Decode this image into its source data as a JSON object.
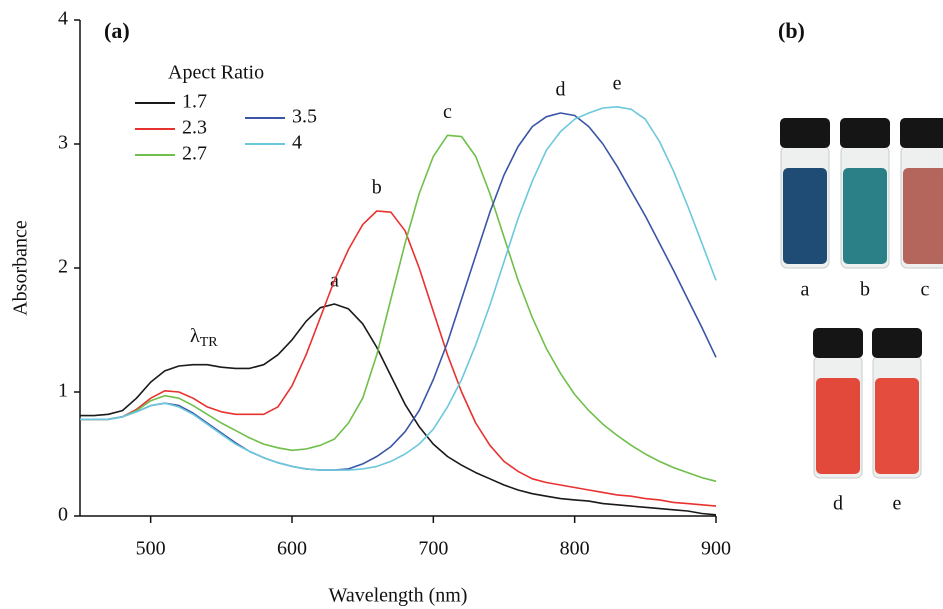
{
  "chart_data": {
    "type": "line",
    "panel_label": "(a)",
    "xlabel": "Wavelength (nm)",
    "ylabel": "Absorbance",
    "annotation": {
      "symbol": "λ",
      "subscript": "TR"
    },
    "legend_title": "Apect Ratio",
    "x": [
      450,
      460,
      470,
      480,
      490,
      500,
      510,
      520,
      530,
      540,
      550,
      560,
      570,
      580,
      590,
      600,
      610,
      620,
      630,
      640,
      650,
      660,
      670,
      680,
      690,
      700,
      710,
      720,
      730,
      740,
      750,
      760,
      770,
      780,
      790,
      800,
      810,
      820,
      830,
      840,
      850,
      860,
      870,
      880,
      890,
      900
    ],
    "series": [
      {
        "name": "1.7",
        "label": "a",
        "color": "#1a1a1a",
        "values": [
          0.81,
          0.81,
          0.82,
          0.85,
          0.95,
          1.08,
          1.17,
          1.21,
          1.22,
          1.22,
          1.2,
          1.19,
          1.19,
          1.22,
          1.3,
          1.42,
          1.57,
          1.68,
          1.71,
          1.67,
          1.55,
          1.36,
          1.13,
          0.9,
          0.72,
          0.58,
          0.48,
          0.41,
          0.35,
          0.3,
          0.25,
          0.21,
          0.18,
          0.16,
          0.14,
          0.13,
          0.12,
          0.1,
          0.09,
          0.08,
          0.07,
          0.06,
          0.05,
          0.04,
          0.02,
          0.01
        ]
      },
      {
        "name": "2.3",
        "label": "b",
        "color": "#e8322f",
        "values": [
          0.78,
          0.78,
          0.78,
          0.8,
          0.86,
          0.95,
          1.01,
          1.0,
          0.95,
          0.88,
          0.84,
          0.82,
          0.82,
          0.82,
          0.88,
          1.05,
          1.3,
          1.6,
          1.9,
          2.15,
          2.35,
          2.46,
          2.45,
          2.3,
          2.0,
          1.65,
          1.3,
          1.0,
          0.75,
          0.57,
          0.44,
          0.36,
          0.3,
          0.27,
          0.25,
          0.23,
          0.21,
          0.19,
          0.17,
          0.16,
          0.14,
          0.13,
          0.11,
          0.1,
          0.09,
          0.08
        ]
      },
      {
        "name": "2.7",
        "label": "c",
        "color": "#6fbf4a",
        "values": [
          0.78,
          0.78,
          0.78,
          0.8,
          0.85,
          0.93,
          0.97,
          0.95,
          0.89,
          0.82,
          0.75,
          0.69,
          0.63,
          0.58,
          0.55,
          0.53,
          0.54,
          0.57,
          0.62,
          0.75,
          0.95,
          1.3,
          1.75,
          2.2,
          2.6,
          2.9,
          3.07,
          3.06,
          2.9,
          2.6,
          2.25,
          1.9,
          1.6,
          1.35,
          1.15,
          0.98,
          0.85,
          0.74,
          0.65,
          0.57,
          0.5,
          0.44,
          0.39,
          0.35,
          0.31,
          0.28
        ]
      },
      {
        "name": "3.5",
        "label": "d",
        "color": "#3a55a8",
        "values": [
          0.78,
          0.78,
          0.78,
          0.8,
          0.84,
          0.89,
          0.91,
          0.89,
          0.83,
          0.75,
          0.67,
          0.59,
          0.52,
          0.47,
          0.43,
          0.4,
          0.38,
          0.37,
          0.37,
          0.38,
          0.42,
          0.48,
          0.56,
          0.68,
          0.85,
          1.1,
          1.4,
          1.75,
          2.1,
          2.45,
          2.75,
          2.98,
          3.14,
          3.22,
          3.25,
          3.23,
          3.14,
          3.0,
          2.82,
          2.62,
          2.42,
          2.2,
          1.98,
          1.75,
          1.52,
          1.28
        ]
      },
      {
        "name": "4",
        "label": "e",
        "color": "#6cc8dc",
        "values": [
          0.78,
          0.78,
          0.78,
          0.8,
          0.84,
          0.89,
          0.91,
          0.88,
          0.82,
          0.74,
          0.66,
          0.58,
          0.52,
          0.47,
          0.43,
          0.4,
          0.38,
          0.37,
          0.37,
          0.37,
          0.38,
          0.4,
          0.44,
          0.5,
          0.58,
          0.7,
          0.88,
          1.1,
          1.38,
          1.7,
          2.05,
          2.4,
          2.7,
          2.95,
          3.1,
          3.2,
          3.25,
          3.29,
          3.3,
          3.28,
          3.2,
          3.02,
          2.78,
          2.5,
          2.2,
          1.9
        ]
      }
    ],
    "xlim": [
      450,
      900
    ],
    "xticks": [
      500,
      600,
      700,
      800,
      900
    ],
    "ylim": [
      0,
      4
    ],
    "yticks": [
      0,
      1,
      2,
      3,
      4
    ]
  },
  "photo": {
    "panel_label": "(b)",
    "vials": [
      {
        "label": "a",
        "color": "#1e4c74"
      },
      {
        "label": "b",
        "color": "#2b8088"
      },
      {
        "label": "c",
        "color": "#b5665c"
      },
      {
        "label": "d",
        "color": "#e2493b"
      },
      {
        "label": "e",
        "color": "#e44c3e"
      }
    ]
  }
}
